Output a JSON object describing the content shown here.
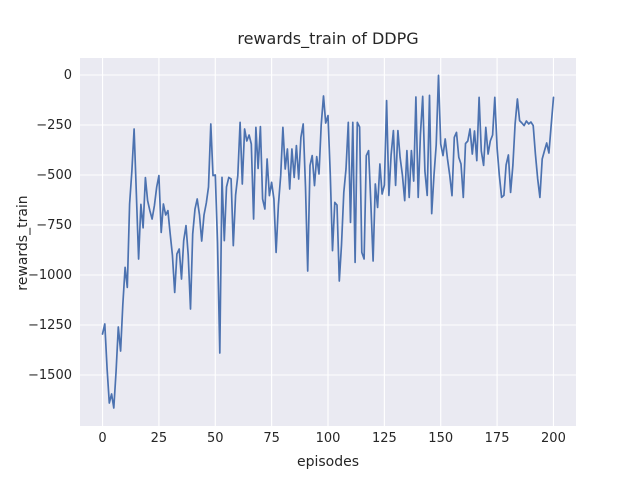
{
  "figure": {
    "title": "rewards_train of DDPG",
    "xlabel": "episodes",
    "ylabel": "rewards_train"
  },
  "chart_data": {
    "type": "line",
    "title": "rewards_train of DDPG",
    "xlabel": "episodes",
    "ylabel": "rewards_train",
    "series_name": "rewards_train",
    "x_start": 0,
    "x_step": 1,
    "values": [
      -1295,
      -1245,
      -1470,
      -1640,
      -1595,
      -1665,
      -1480,
      -1260,
      -1380,
      -1150,
      -962,
      -1062,
      -645,
      -478,
      -270,
      -600,
      -920,
      -647,
      -764,
      -513,
      -628,
      -679,
      -720,
      -653,
      -560,
      -503,
      -787,
      -645,
      -700,
      -678,
      -795,
      -900,
      -1087,
      -895,
      -870,
      -1020,
      -828,
      -753,
      -900,
      -1170,
      -795,
      -670,
      -620,
      -700,
      -830,
      -700,
      -640,
      -560,
      -245,
      -503,
      -500,
      -836,
      -1390,
      -512,
      -828,
      -560,
      -512,
      -520,
      -853,
      -600,
      -503,
      -237,
      -545,
      -270,
      -330,
      -300,
      -345,
      -720,
      -262,
      -467,
      -258,
      -620,
      -670,
      -420,
      -603,
      -537,
      -620,
      -887,
      -650,
      -503,
      -262,
      -470,
      -370,
      -570,
      -370,
      -512,
      -353,
      -520,
      -312,
      -245,
      -560,
      -980,
      -453,
      -403,
      -553,
      -408,
      -495,
      -250,
      -105,
      -240,
      -203,
      -500,
      -878,
      -637,
      -650,
      -1030,
      -850,
      -587,
      -470,
      -237,
      -737,
      -237,
      -937,
      -237,
      -260,
      -887,
      -920,
      -403,
      -378,
      -637,
      -930,
      -545,
      -662,
      -445,
      -595,
      -550,
      -128,
      -602,
      -400,
      -278,
      -552,
      -278,
      -412,
      -500,
      -628,
      -378,
      -612,
      -378,
      -530,
      -110,
      -612,
      -300,
      -107,
      -480,
      -602,
      -102,
      -693,
      -500,
      -350,
      -2,
      -345,
      -403,
      -320,
      -420,
      -500,
      -603,
      -312,
      -287,
      -412,
      -445,
      -612,
      -343,
      -330,
      -270,
      -395,
      -280,
      -428,
      -112,
      -380,
      -452,
      -262,
      -395,
      -330,
      -300,
      -112,
      -365,
      -500,
      -612,
      -602,
      -450,
      -400,
      -587,
      -450,
      -245,
      -120,
      -228,
      -240,
      -253,
      -230,
      -245,
      -235,
      -253,
      -395,
      -520,
      -612,
      -420,
      -380,
      -340,
      -390,
      -250,
      -112
    ],
    "xlim": [
      -10,
      210
    ],
    "ylim": [
      -1755,
      85
    ],
    "xticks": [
      0,
      25,
      50,
      75,
      100,
      125,
      150,
      175,
      200
    ],
    "xtick_labels": [
      "0",
      "25",
      "50",
      "75",
      "100",
      "125",
      "150",
      "175",
      "200"
    ],
    "yticks": [
      0,
      -250,
      -500,
      -750,
      -1000,
      -1250,
      -1500
    ],
    "ytick_labels": [
      "0",
      "−250",
      "−500",
      "−750",
      "−1000",
      "−1250",
      "−1500"
    ],
    "grid": true,
    "legend_position": "none",
    "line_color": "#4c72b0",
    "plot_bg": "#eaeaf2",
    "grid_color": "#ffffff",
    "fig_bg": "#ffffff",
    "text_color": "#262626"
  }
}
